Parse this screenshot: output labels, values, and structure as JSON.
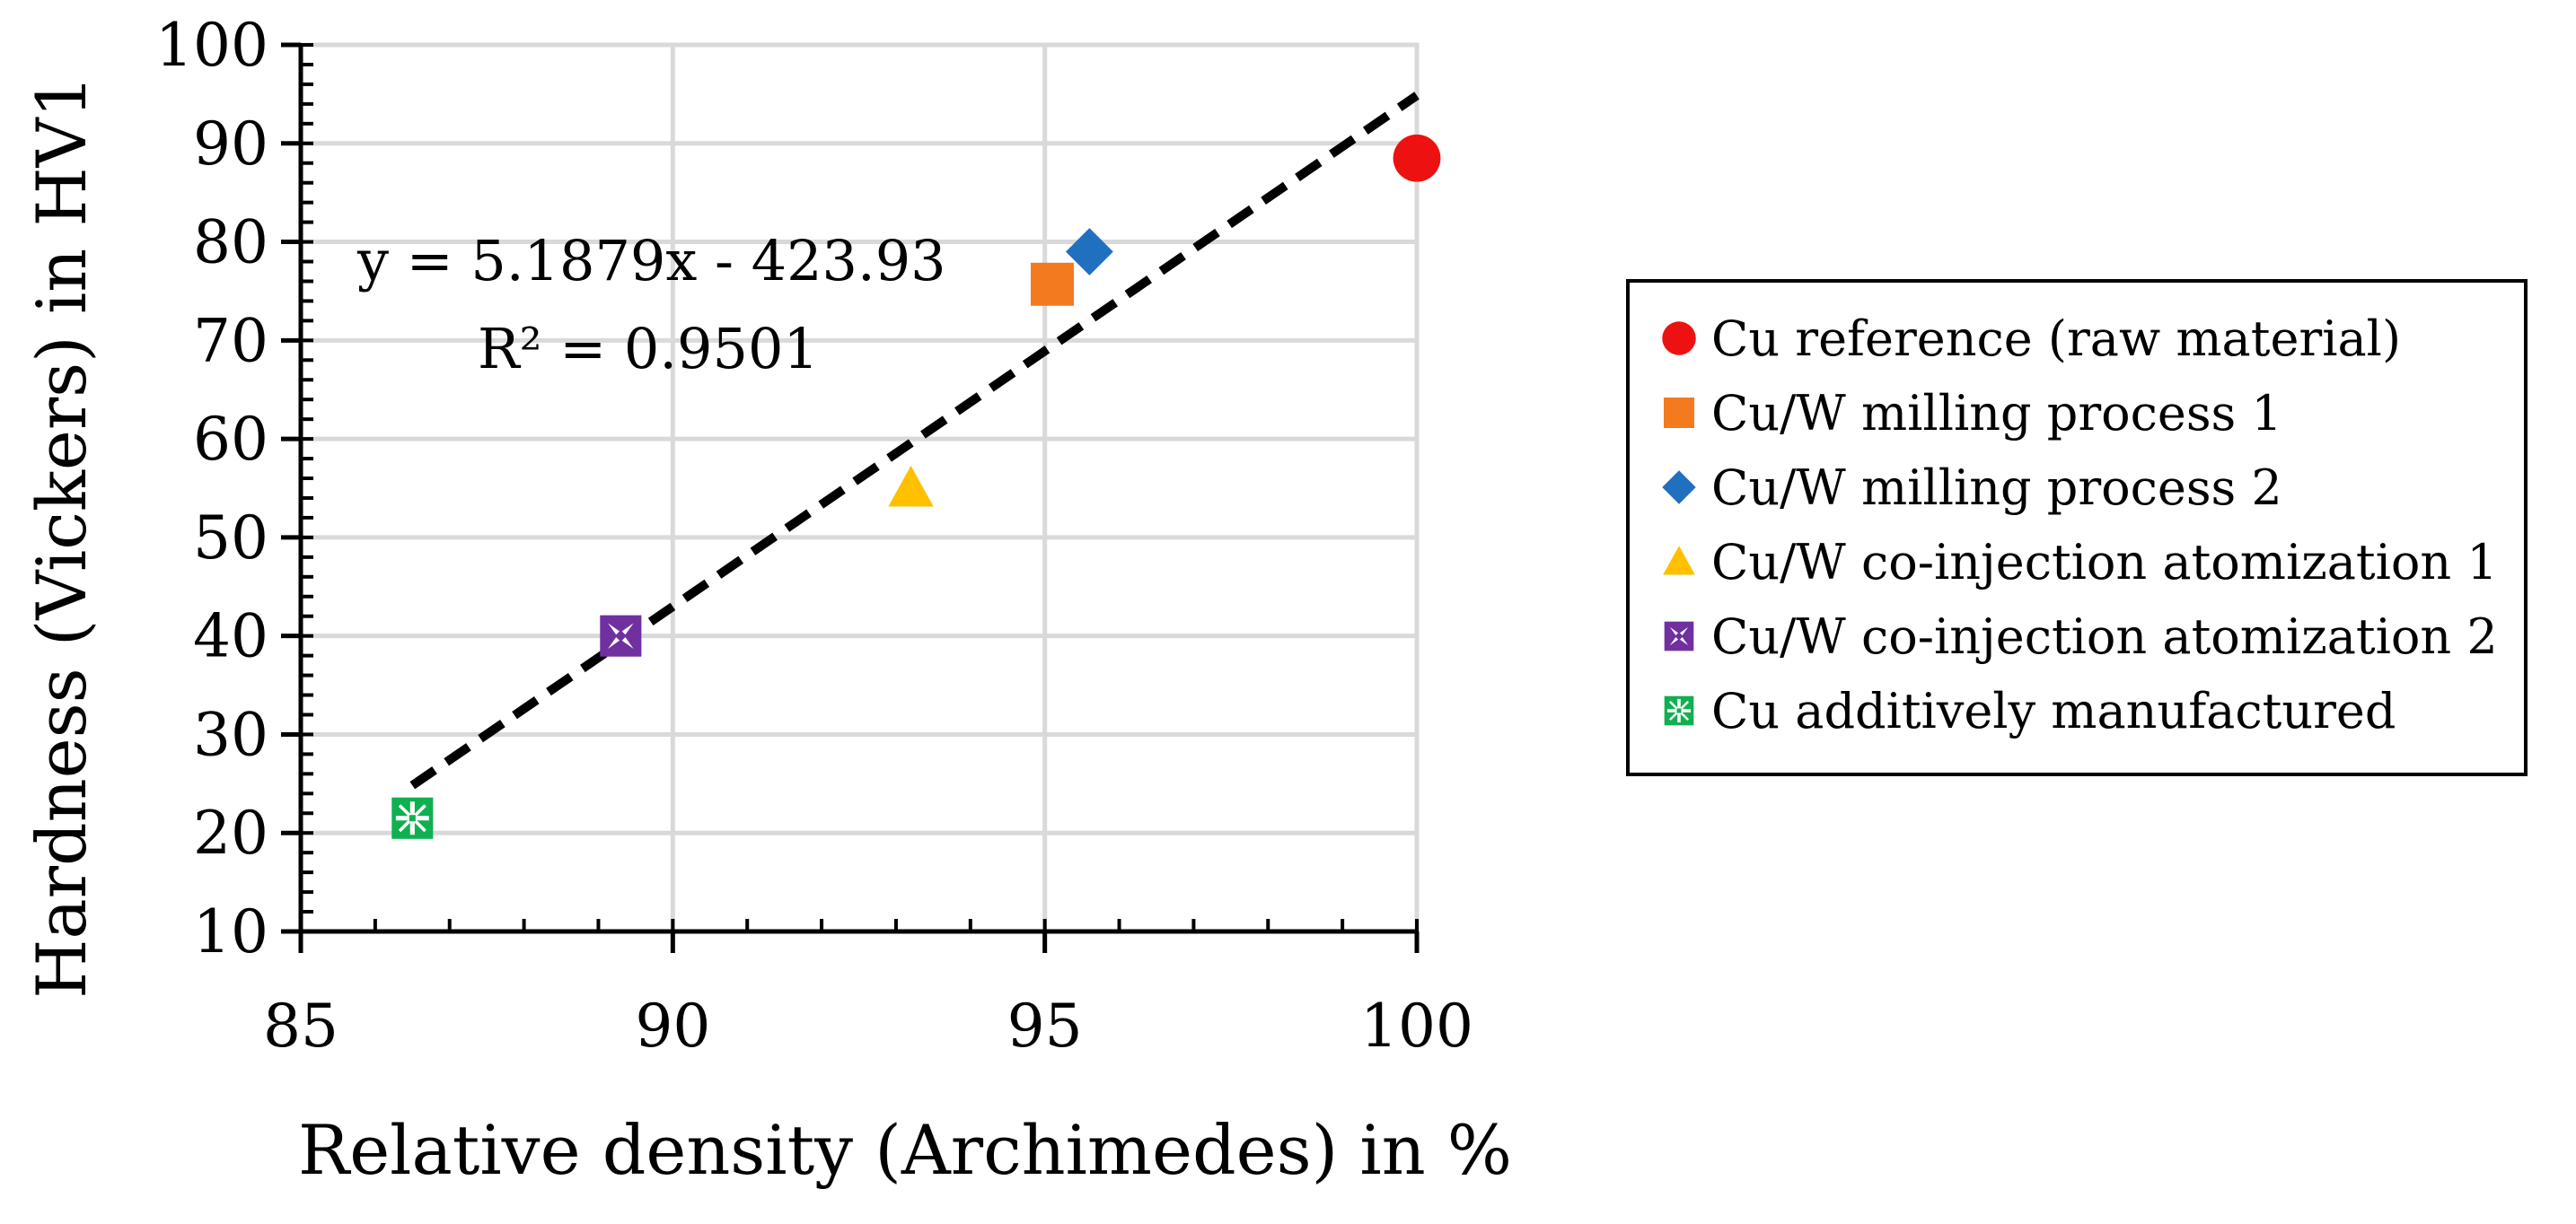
{
  "chart_data": {
    "type": "scatter",
    "title": "",
    "xlabel": "Relative density (Archimedes) in %",
    "ylabel": "Hardness (Vickers) in HV1",
    "xlim": [
      85,
      100
    ],
    "ylim": [
      10,
      100
    ],
    "x_ticks": [
      85,
      90,
      95,
      100
    ],
    "x_tick_labels": [
      "85",
      "90",
      "95",
      "100"
    ],
    "x_minor_step": 1,
    "y_ticks": [
      10,
      20,
      30,
      40,
      50,
      60,
      70,
      80,
      90,
      100
    ],
    "y_tick_labels": [
      "10",
      "20",
      "30",
      "40",
      "50",
      "60",
      "70",
      "80",
      "90",
      "100"
    ],
    "y_minor_step": 2,
    "grid": true,
    "legend_position": "right",
    "series": [
      {
        "name": "Cu reference (raw material)",
        "marker": "circle",
        "color": "#ee1111",
        "x": 100.0,
        "y": 88.5
      },
      {
        "name": "Cu/W milling process 1",
        "marker": "square",
        "color": "#f47a1f",
        "x": 95.1,
        "y": 75.7
      },
      {
        "name": "Cu/W milling process 2",
        "marker": "diamond",
        "color": "#2070c0",
        "x": 95.6,
        "y": 79.0
      },
      {
        "name": "Cu/W co-injection atomization 1",
        "marker": "triangle",
        "color": "#ffc000",
        "x": 93.2,
        "y": 55.0
      },
      {
        "name": "Cu/W co-injection atomization 2",
        "marker": "x-square",
        "color": "#7030a0",
        "x": 89.3,
        "y": 40.0
      },
      {
        "name": "Cu additively manufactured",
        "marker": "star-square",
        "color": "#10b050",
        "x": 86.5,
        "y": 21.5
      }
    ],
    "trendline": {
      "type": "linear",
      "slope": 5.1879,
      "intercept": -423.93,
      "x_range": [
        86.5,
        100
      ],
      "color": "#000000",
      "style": "dashed",
      "equation_label": "y = 5.1879x - 423.93",
      "r2_label": "R² = 0.9501"
    }
  }
}
